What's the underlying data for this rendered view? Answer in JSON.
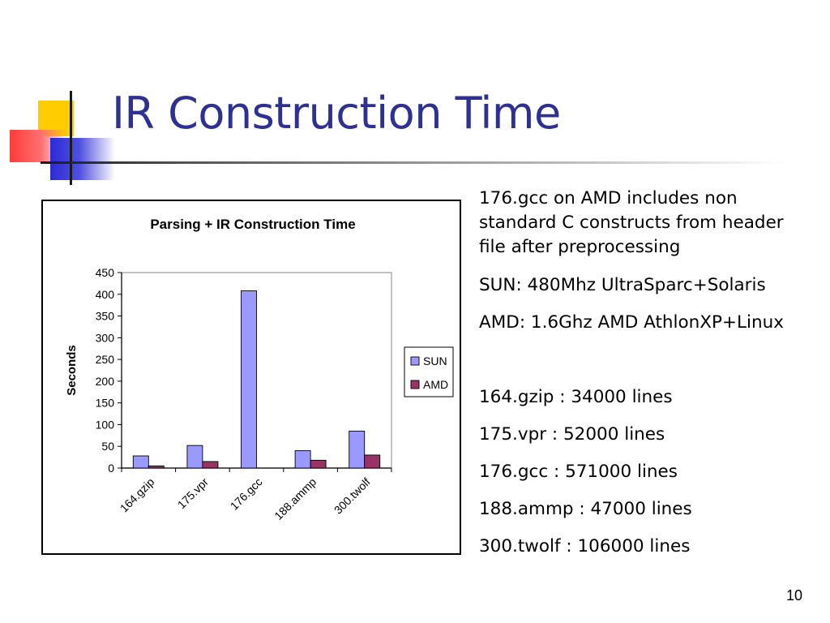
{
  "slide": {
    "title": "IR Construction Time",
    "page_number": "10"
  },
  "notes": [
    "176.gcc on AMD includes non standard C constructs from header file after preprocessing",
    "SUN: 480Mhz UltraSparc+Solaris",
    "AMD: 1.6Ghz AMD AthlonXP+Linux",
    "164.gzip : 34000 lines",
    "175.vpr : 52000 lines",
    "176.gcc : 571000 lines",
    "188.ammp : 47000 lines",
    "300.twolf : 106000 lines"
  ],
  "chart_data": {
    "type": "bar",
    "title": "Parsing + IR Construction Time",
    "xlabel": "",
    "ylabel": "Seconds",
    "categories": [
      "164.gzip",
      "175.vpr",
      "176.gcc",
      "188.ammp",
      "300.twolf"
    ],
    "series": [
      {
        "name": "SUN",
        "values": [
          28,
          52,
          408,
          40,
          85
        ],
        "color": "#9999ff"
      },
      {
        "name": "AMD",
        "values": [
          5,
          15,
          null,
          18,
          30
        ],
        "color": "#993366"
      }
    ],
    "ylim": [
      0,
      450
    ],
    "yticks": [
      0,
      50,
      100,
      150,
      200,
      250,
      300,
      350,
      400,
      450
    ],
    "grid": false,
    "legend_position": "right"
  }
}
